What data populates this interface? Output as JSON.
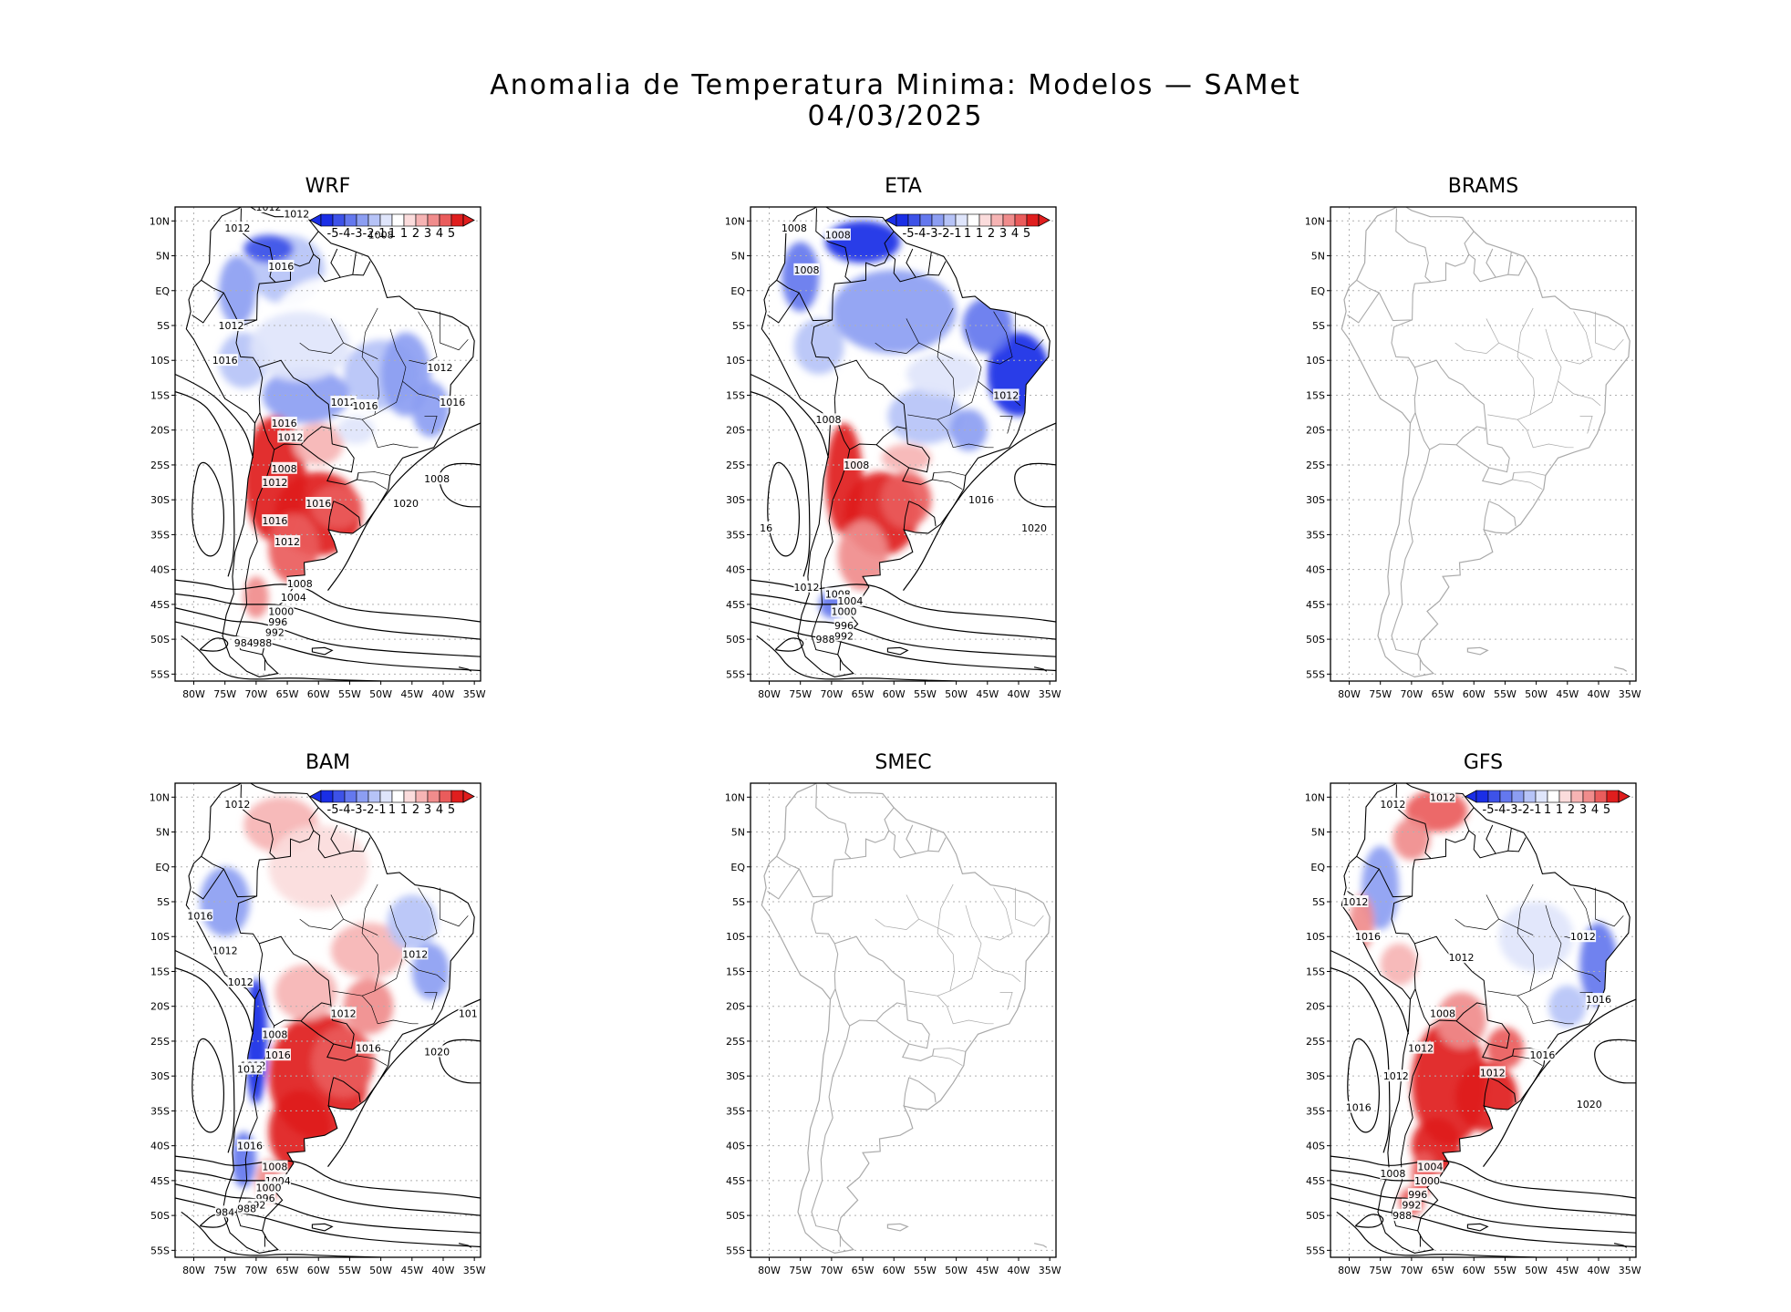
{
  "header": {
    "title": "Anomalia de Temperatura Minima: Modelos — SAMet",
    "date": "04/03/2025"
  },
  "chart_data": {
    "type": "map",
    "title": "Anomalia de Temperatura Minima: Modelos — SAMet",
    "subtitle": "04/03/2025",
    "lat_ticks": [
      "10N",
      "5N",
      "EQ",
      "5S",
      "10S",
      "15S",
      "20S",
      "25S",
      "30S",
      "35S",
      "40S",
      "45S",
      "50S",
      "55S"
    ],
    "lon_ticks": [
      "80W",
      "75W",
      "70W",
      "65W",
      "60W",
      "55W",
      "50W",
      "45W",
      "40W",
      "35W"
    ],
    "lat_range": [
      -56,
      12
    ],
    "lon_range": [
      -83,
      -34
    ],
    "colorbar": {
      "labels": [
        "-5",
        "-4",
        "-3",
        "-2",
        "-1",
        "1",
        "1",
        "2",
        "3",
        "4",
        "5"
      ],
      "colors": [
        "#1a2ee6",
        "#3d52e8",
        "#6478ee",
        "#8c9ef2",
        "#b6c3f7",
        "#dfe5fb",
        "#ffffff",
        "#fbdcdc",
        "#f6b4b4",
        "#f08c8c",
        "#ea5c5c",
        "#e01e1e"
      ],
      "unit": "anomaly"
    },
    "panels": [
      {
        "name": "WRF",
        "has_data": true,
        "contour_labels": [
          "1012",
          "1012",
          "1012",
          "1008",
          "1016",
          "1012",
          "1016",
          "1012",
          "1012",
          "1016",
          "1016",
          "1016",
          "1012",
          "1008",
          "1012",
          "1016",
          "1020",
          "1008",
          "1016",
          "1012",
          "1008",
          "1004",
          "1000",
          "996",
          "992",
          "988",
          "984"
        ]
      },
      {
        "name": "ETA",
        "has_data": true,
        "contour_labels": [
          "1008",
          "1008",
          "1008",
          "1012",
          "1008",
          "1008",
          "1016",
          "1020",
          "16",
          "1012",
          "1008",
          "1004",
          "1000",
          "996",
          "992",
          "988"
        ]
      },
      {
        "name": "BRAMS",
        "has_data": false,
        "contour_labels": []
      },
      {
        "name": "BAM",
        "has_data": true,
        "contour_labels": [
          "1012",
          "1016",
          "1012",
          "1012",
          "1012",
          "101",
          "1012",
          "1008",
          "1016",
          "1020",
          "1012",
          "1016",
          "1012",
          "1016",
          "1008",
          "1004",
          "1000",
          "996",
          "992",
          "988",
          "984"
        ]
      },
      {
        "name": "SMEC",
        "has_data": false,
        "contour_labels": []
      },
      {
        "name": "GFS",
        "has_data": true,
        "contour_labels": [
          "1012",
          "1012",
          "1012",
          "1016",
          "1012",
          "1012",
          "1016",
          "1008",
          "1012",
          "1012",
          "1016",
          "1012",
          "1016",
          "1020",
          "1004",
          "1008",
          "1000",
          "996",
          "992",
          "988"
        ]
      }
    ]
  }
}
